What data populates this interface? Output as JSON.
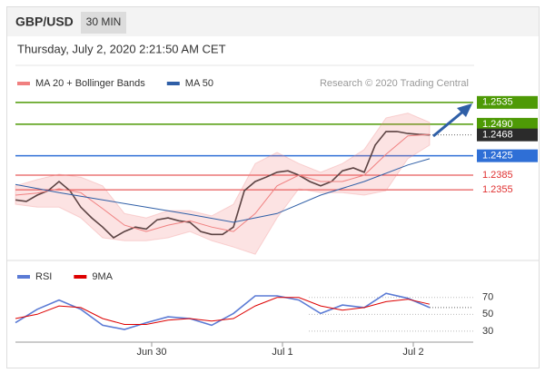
{
  "chart_data": [
    {
      "type": "line",
      "title": "GBP/USD",
      "timeframe": "30 MIN",
      "subtitle": "Thursday, July 2, 2020 2:21:50 AM CET",
      "source": "Research © 2020 Trading Central",
      "xlim": [
        0,
        84
      ],
      "ylim": [
        1.2213,
        1.2559
      ],
      "series": [
        {
          "color": "#333333",
          "x": [
            0,
            2,
            4,
            6,
            8,
            10,
            12,
            14,
            16,
            18,
            20,
            22,
            24,
            26,
            28,
            30,
            32,
            34,
            36,
            38,
            40,
            42,
            44,
            46,
            48,
            50,
            52,
            54,
            56,
            58,
            60,
            62,
            64,
            66,
            68,
            70,
            72,
            74,
            76
          ],
          "values": [
            1.2334,
            1.2331,
            1.2344,
            1.2353,
            1.2372,
            1.2353,
            1.2319,
            1.2297,
            1.2278,
            1.2256,
            1.2269,
            1.2278,
            1.2274,
            1.2293,
            1.2297,
            1.2291,
            1.2288,
            1.2269,
            1.2263,
            1.2263,
            1.2278,
            1.2353,
            1.2372,
            1.2381,
            1.2391,
            1.2394,
            1.2385,
            1.2372,
            1.2363,
            1.2372,
            1.2394,
            1.24,
            1.2391,
            1.2447,
            1.2475,
            1.2475,
            1.2471,
            1.2469,
            1.2468
          ]
        },
        {
          "name": "MA 20 + Bollinger Bands",
          "color": "#f08080",
          "x": [
            0,
            4,
            8,
            12,
            16,
            20,
            24,
            28,
            32,
            36,
            40,
            44,
            48,
            52,
            56,
            60,
            64,
            68,
            72,
            76
          ],
          "values": [
            1.2344,
            1.2348,
            1.2357,
            1.2349,
            1.2316,
            1.2282,
            1.2269,
            1.2282,
            1.2291,
            1.2278,
            1.2269,
            1.2306,
            1.2363,
            1.2385,
            1.2372,
            1.2372,
            1.2385,
            1.2428,
            1.2466,
            1.2469
          ],
          "upper": [
            1.2363,
            1.2376,
            1.2387,
            1.2381,
            1.2363,
            1.2306,
            1.2297,
            1.2312,
            1.2312,
            1.2301,
            1.2325,
            1.2409,
            1.2432,
            1.2409,
            1.2391,
            1.2409,
            1.2438,
            1.2503,
            1.2513,
            1.2494
          ],
          "lower": [
            1.2325,
            1.2319,
            1.2319,
            1.2297,
            1.2256,
            1.225,
            1.225,
            1.2256,
            1.2269,
            1.225,
            1.2237,
            1.2222,
            1.2297,
            1.2357,
            1.2349,
            1.2349,
            1.2344,
            1.2353,
            1.2419,
            1.2447
          ]
        },
        {
          "name": "MA 50",
          "color": "#2f5fa7",
          "x": [
            0,
            8,
            16,
            24,
            32,
            40,
            48,
            56,
            64,
            72,
            76
          ],
          "values": [
            1.2366,
            1.2349,
            1.2334,
            1.2319,
            1.2304,
            1.2288,
            1.2306,
            1.2344,
            1.2372,
            1.2406,
            1.2419
          ]
        }
      ],
      "levels": [
        {
          "value": 1.2535,
          "label": "1.2535",
          "color": "#4e9a06",
          "boxed": true
        },
        {
          "value": 1.249,
          "label": "1.2490",
          "color": "#4e9a06",
          "boxed": true
        },
        {
          "value": 1.2468,
          "label": "1.2468",
          "color": "#2b2b2b",
          "boxed": true,
          "dotted": true
        },
        {
          "value": 1.2425,
          "label": "1.2425",
          "color": "#2f6fd6",
          "boxed": true
        },
        {
          "value": 1.2385,
          "label": "1.2385",
          "color": "#e03030",
          "boxed": false
        },
        {
          "value": 1.2355,
          "label": "1.2355",
          "color": "#e03030",
          "boxed": false
        }
      ]
    },
    {
      "type": "line",
      "xlim": [
        0,
        84
      ],
      "ylim": [
        18,
        100
      ],
      "yticks": [
        30,
        50,
        70
      ],
      "xticks": [
        {
          "value": 25,
          "label": "Jun 30"
        },
        {
          "value": 49,
          "label": "Jul 1"
        },
        {
          "value": 73,
          "label": "Jul 2"
        }
      ],
      "series": [
        {
          "name": "RSI",
          "color": "#5b7bd5",
          "x": [
            0,
            4,
            8,
            12,
            16,
            20,
            24,
            28,
            32,
            36,
            40,
            44,
            48,
            52,
            56,
            60,
            64,
            68,
            72,
            76
          ],
          "values": [
            40,
            56,
            67,
            56,
            37,
            32,
            40,
            47,
            45,
            37,
            51,
            72,
            72,
            67,
            51,
            61,
            58,
            75,
            69,
            58
          ]
        },
        {
          "name": "9MA",
          "color": "#dd0000",
          "x": [
            0,
            4,
            8,
            12,
            16,
            20,
            24,
            28,
            32,
            36,
            40,
            44,
            48,
            52,
            56,
            60,
            64,
            68,
            72,
            76
          ],
          "values": [
            45,
            50,
            60,
            58,
            45,
            38,
            38,
            43,
            45,
            42,
            45,
            60,
            70,
            70,
            60,
            55,
            58,
            65,
            68,
            62
          ]
        }
      ]
    }
  ]
}
